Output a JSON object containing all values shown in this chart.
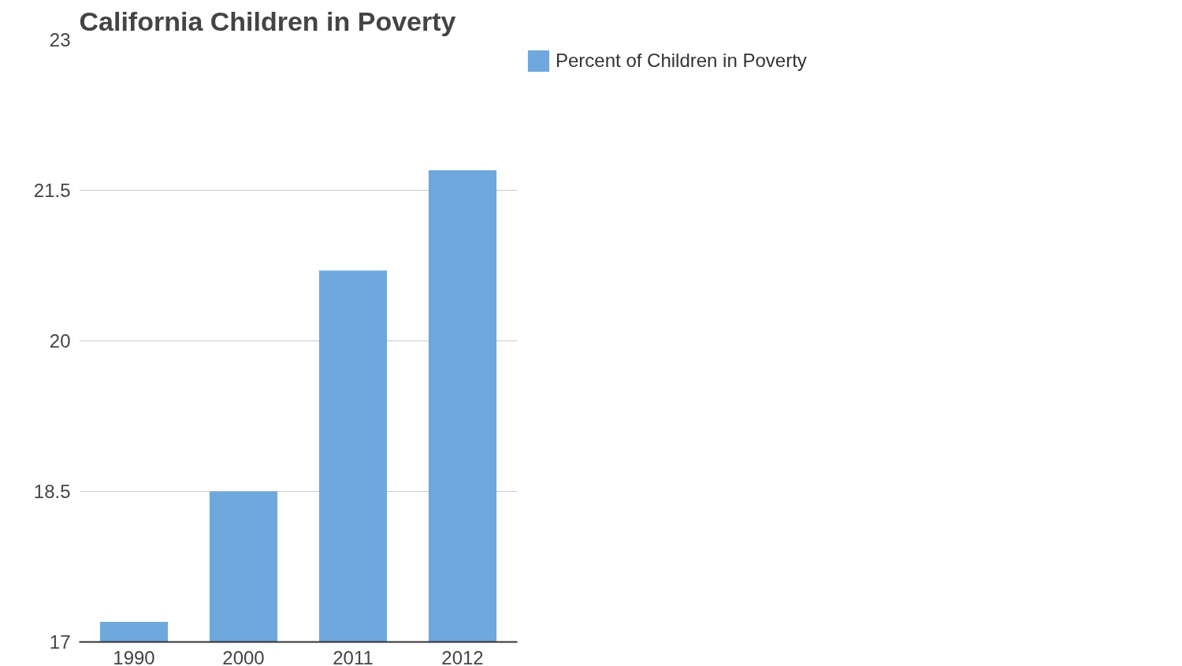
{
  "chart_data": {
    "type": "bar",
    "title": "California Children in Poverty",
    "categories": [
      "1990",
      "2000",
      "2011",
      "2012"
    ],
    "series": [
      {
        "name": "Percent of Children in Poverty",
        "color": "#6fa8dc",
        "values": [
          17.2,
          18.5,
          20.7,
          21.7
        ]
      }
    ],
    "ylim": [
      17,
      23
    ],
    "yticks": [
      17,
      18.5,
      20,
      21.5,
      23
    ],
    "grid": "y",
    "legend": "top right"
  }
}
